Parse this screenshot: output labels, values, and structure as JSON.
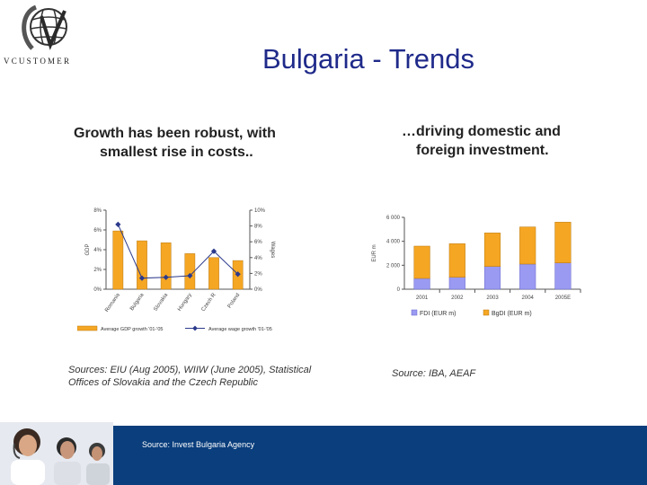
{
  "logo": {
    "text": "VCUSTOMER"
  },
  "slide": {
    "title": "Bulgaria - Trends"
  },
  "left_heading": {
    "line1": "Growth has been robust, with",
    "line2": "smallest rise in costs.."
  },
  "right_heading": {
    "line1": "…driving domestic and",
    "line2": "foreign investment."
  },
  "left_source": {
    "line1": "Sources: EIU (Aug 2005), WIIW (June 2005), Statistical",
    "line2": "Offices of Slovakia and the Czech Republic"
  },
  "right_source": {
    "text": "Source: IBA, AEAF"
  },
  "footer": {
    "source": "Source: Invest Bulgaria Agency"
  },
  "colors": {
    "title": "#1f2a8a",
    "bar_orange": "#f5a623",
    "bar_purple": "#9a9af2",
    "wage_line": "#2b3a8c",
    "footer": "#0a3e7c"
  },
  "chart_data": [
    {
      "type": "bar",
      "categories": [
        "Romania",
        "Bulgaria",
        "Slovakia",
        "Hungary",
        "Czech R",
        "Poland"
      ],
      "ylabel": "GDP",
      "y2label": "Wages",
      "ylim": [
        0,
        8
      ],
      "y2lim": [
        0,
        10
      ],
      "yticks": [
        "0%",
        "2%",
        "4%",
        "6%",
        "8%"
      ],
      "y2ticks": [
        "0%",
        "2%",
        "4%",
        "6%",
        "8%",
        "10%"
      ],
      "series": [
        {
          "name": "Average GDP growth '01-'05",
          "kind": "bar",
          "axis": "left",
          "values": [
            5.9,
            4.9,
            4.7,
            3.6,
            3.2,
            2.9
          ]
        },
        {
          "name": "Average wage growth '01-'05",
          "kind": "line",
          "axis": "right",
          "values": [
            8.2,
            1.4,
            1.5,
            1.7,
            4.8,
            1.9
          ]
        }
      ],
      "legend": "bottom",
      "grid": false
    },
    {
      "type": "bar",
      "stacked": true,
      "categories": [
        "2001",
        "2002",
        "2003",
        "2004",
        "2005E"
      ],
      "ylabel": "EUR m",
      "ylim": [
        0,
        6000
      ],
      "yticks": [
        "0",
        "2 000",
        "4 000",
        "6 000"
      ],
      "series": [
        {
          "name": "FDI (EUR m)",
          "values": [
            900,
            1000,
            1900,
            2100,
            2200
          ]
        },
        {
          "name": "BgDI (EUR m)",
          "values": [
            2700,
            2800,
            2800,
            3100,
            3400
          ]
        }
      ],
      "legend": "bottom",
      "grid": false
    }
  ]
}
